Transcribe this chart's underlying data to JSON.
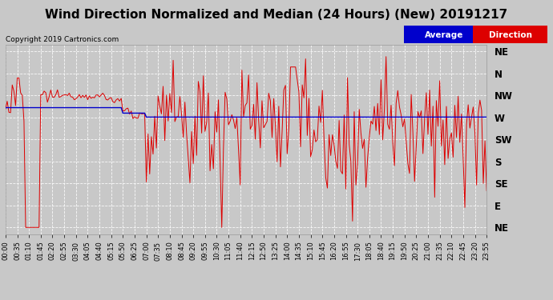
{
  "title": "Wind Direction Normalized and Median (24 Hours) (New) 20191217",
  "copyright": "Copyright 2019 Cartronics.com",
  "ytick_labels": [
    "NE",
    "N",
    "NW",
    "W",
    "SW",
    "S",
    "SE",
    "E",
    "NE"
  ],
  "ytick_values": [
    8,
    7,
    6,
    5,
    4,
    3,
    2,
    1,
    0
  ],
  "ylim": [
    -0.3,
    8.3
  ],
  "background_color": "#c8c8c8",
  "plot_bg_color": "#c8c8c8",
  "grid_color": "#ffffff",
  "title_fontsize": 11,
  "legend_avg_color": "#0000cc",
  "legend_dir_color": "#dd0000",
  "avg_line_color": "#0000cc",
  "dir_line_color": "#dd0000"
}
